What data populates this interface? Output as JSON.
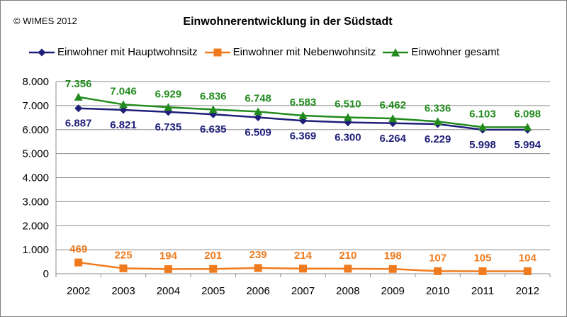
{
  "header": {
    "copyright": "© WIMES 2012"
  },
  "chart_data": {
    "type": "line",
    "title": "Einwohnerentwicklung in der Südstadt",
    "xlabel": "",
    "ylabel": "",
    "categories": [
      "2002",
      "2003",
      "2004",
      "2005",
      "2006",
      "2007",
      "2008",
      "2009",
      "2010",
      "2011",
      "2012"
    ],
    "ylim": [
      0,
      8000
    ],
    "yticks": [
      "0",
      "1.000",
      "2.000",
      "3.000",
      "4.000",
      "5.000",
      "6.000",
      "7.000",
      "8.000"
    ],
    "grid": true,
    "legend_position": "top",
    "series": [
      {
        "name": "Einwohner mit Hauptwohnsitz",
        "color": "#1f1f7a",
        "marker": "diamond",
        "values": [
          6887,
          6821,
          6735,
          6635,
          6509,
          6369,
          6300,
          6264,
          6229,
          5998,
          5994
        ],
        "labels": [
          "6.887",
          "6.821",
          "6.735",
          "6.635",
          "6.509",
          "6.369",
          "6.300",
          "6.264",
          "6.229",
          "5.998",
          "5.994"
        ]
      },
      {
        "name": "Einwohner mit Nebenwohnsitz",
        "color": "#f07b1e",
        "marker": "square",
        "values": [
          469,
          225,
          194,
          201,
          239,
          214,
          210,
          198,
          107,
          105,
          104
        ],
        "labels": [
          "469",
          "225",
          "194",
          "201",
          "239",
          "214",
          "210",
          "198",
          "107",
          "105",
          "104"
        ]
      },
      {
        "name": "Einwohner gesamt",
        "color": "#228b1e",
        "marker": "triangle",
        "values": [
          7356,
          7046,
          6929,
          6836,
          6748,
          6583,
          6510,
          6462,
          6336,
          6103,
          6098
        ],
        "labels": [
          "7.356",
          "7.046",
          "6.929",
          "6.836",
          "6.748",
          "6.583",
          "6.510",
          "6.462",
          "6.336",
          "6.103",
          "6.098"
        ]
      }
    ]
  }
}
